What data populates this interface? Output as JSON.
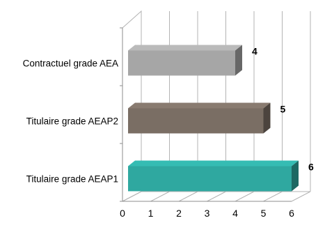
{
  "chart_data": {
    "type": "bar",
    "orientation": "horizontal",
    "three_d": true,
    "categories": [
      "Contractuel grade AEA",
      "Titulaire grade AEAP2",
      "Titulaire grade AEAP1"
    ],
    "values": [
      4,
      5,
      6
    ],
    "data_labels": [
      "4",
      "5",
      "6"
    ],
    "bar_colors": [
      "#a6a6a6",
      "#7a6e64",
      "#2fa8a0"
    ],
    "xlim": [
      0,
      6
    ],
    "x_ticks": [
      "0",
      "1",
      "2",
      "3",
      "4",
      "5",
      "6"
    ],
    "grid": true,
    "legend": "none"
  }
}
